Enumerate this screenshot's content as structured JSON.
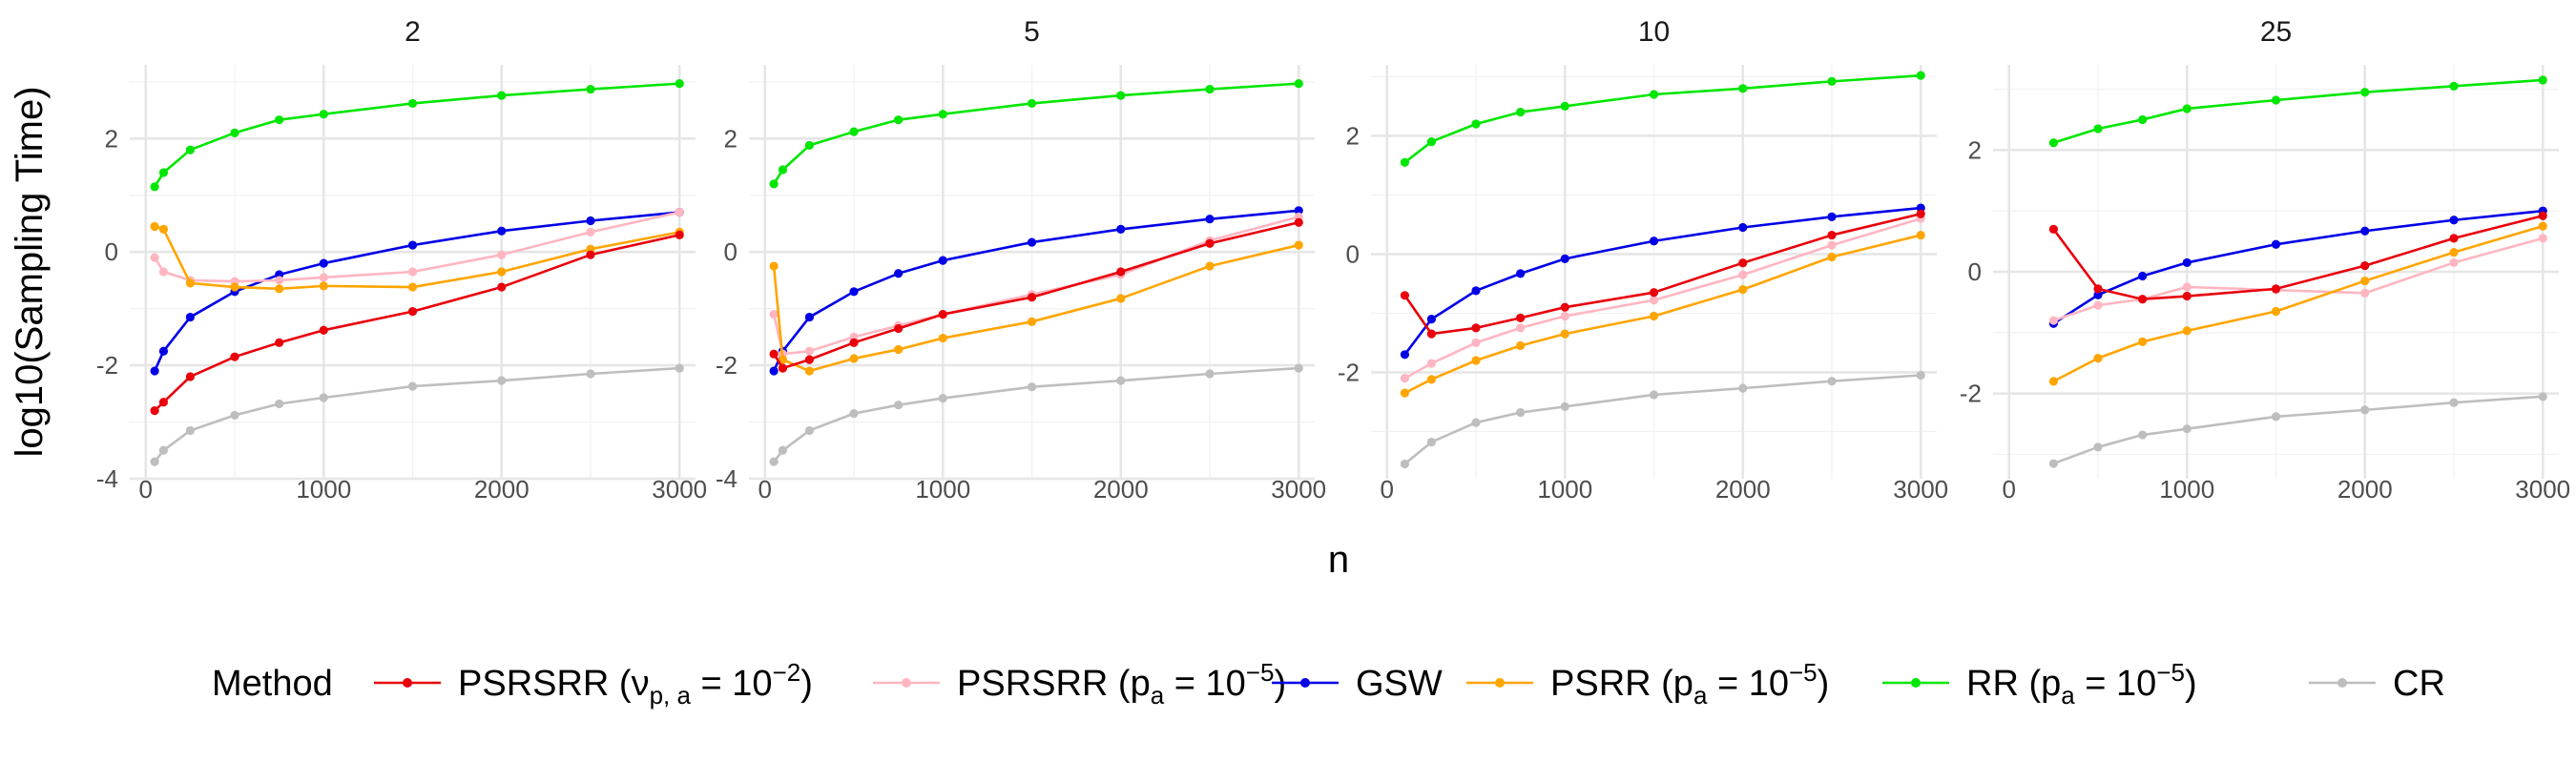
{
  "chart_data": {
    "type": "line",
    "facets": [
      "2",
      "5",
      "10",
      "25"
    ],
    "xlabel": "n",
    "ylabel": "log10(Sampling Time)",
    "xlim": [
      0,
      3000
    ],
    "x_ticks": [
      0,
      1000,
      2000,
      3000
    ],
    "grid": true,
    "legend": {
      "title": "Method",
      "position": "bottom",
      "entries": [
        {
          "key": "psrsrr_nu",
          "base": "PSRSRR",
          "sub": "p, a",
          "sup": "−2",
          "color": "#e8000b"
        },
        {
          "key": "psrsrr_pa",
          "base": "PSRSRR",
          "sub": "a",
          "sup": "−5",
          "color": "#ffb6c1"
        },
        {
          "key": "gsw",
          "base": "GSW",
          "sub": "",
          "sup": "",
          "color": "#0000e6"
        },
        {
          "key": "psrr",
          "base": "PSRR",
          "sub": "a",
          "sup": "−5",
          "color": "#ffa500"
        },
        {
          "key": "rr",
          "base": "RR",
          "sub": "a",
          "sup": "−5",
          "color": "#00e600"
        },
        {
          "key": "cr",
          "base": "CR",
          "sub": "",
          "sup": "",
          "color": "#bebebe"
        }
      ],
      "symbol_nu": "ν",
      "symbol_p": "p",
      "eq": " = 10"
    },
    "panels": [
      {
        "facet": "2",
        "ylim": [
          -4,
          3.3
        ],
        "y_ticks": [
          -4,
          -2,
          0,
          2
        ],
        "series": [
          {
            "key": "rr",
            "x": [
              50,
              100,
              250,
              500,
              750,
              1000,
              1500,
              2000,
              2500,
              3000
            ],
            "y": [
              1.15,
              1.4,
              1.8,
              2.1,
              2.33,
              2.43,
              2.62,
              2.76,
              2.87,
              2.97
            ]
          },
          {
            "key": "gsw",
            "x": [
              50,
              100,
              250,
              500,
              750,
              1000,
              1500,
              2000,
              2500,
              3000
            ],
            "y": [
              -2.1,
              -1.75,
              -1.15,
              -0.7,
              -0.4,
              -0.2,
              0.12,
              0.37,
              0.55,
              0.7
            ]
          },
          {
            "key": "psrsrr_pa",
            "x": [
              50,
              100,
              250,
              500,
              750,
              1000,
              1500,
              2000,
              2500,
              3000
            ],
            "y": [
              -0.1,
              -0.35,
              -0.5,
              -0.52,
              -0.5,
              -0.45,
              -0.35,
              -0.05,
              0.35,
              0.7
            ]
          },
          {
            "key": "psrr",
            "x": [
              50,
              100,
              250,
              500,
              750,
              1000,
              1500,
              2000,
              2500,
              3000
            ],
            "y": [
              0.45,
              0.4,
              -0.55,
              -0.62,
              -0.65,
              -0.6,
              -0.62,
              -0.35,
              0.05,
              0.35
            ]
          },
          {
            "key": "psrsrr_nu",
            "x": [
              50,
              100,
              250,
              500,
              750,
              1000,
              1500,
              2000,
              2500,
              3000
            ],
            "y": [
              -2.8,
              -2.65,
              -2.2,
              -1.85,
              -1.6,
              -1.38,
              -1.05,
              -0.62,
              -0.05,
              0.3
            ]
          },
          {
            "key": "cr",
            "x": [
              50,
              100,
              250,
              500,
              750,
              1000,
              1500,
              2000,
              2500,
              3000
            ],
            "y": [
              -3.7,
              -3.5,
              -3.15,
              -2.88,
              -2.68,
              -2.57,
              -2.37,
              -2.27,
              -2.15,
              -2.05
            ]
          }
        ]
      },
      {
        "facet": "5",
        "ylim": [
          -4,
          3.3
        ],
        "y_ticks": [
          -4,
          -2,
          0,
          2
        ],
        "series": [
          {
            "key": "rr",
            "x": [
              50,
              100,
              250,
              500,
              750,
              1000,
              1500,
              2000,
              2500,
              3000
            ],
            "y": [
              1.2,
              1.45,
              1.88,
              2.12,
              2.33,
              2.43,
              2.62,
              2.76,
              2.87,
              2.97
            ]
          },
          {
            "key": "gsw",
            "x": [
              50,
              100,
              250,
              500,
              750,
              1000,
              1500,
              2000,
              2500,
              3000
            ],
            "y": [
              -2.1,
              -1.75,
              -1.15,
              -0.7,
              -0.38,
              -0.15,
              0.17,
              0.4,
              0.58,
              0.73
            ]
          },
          {
            "key": "psrsrr_pa",
            "x": [
              50,
              100,
              250,
              500,
              750,
              1000,
              1500,
              2000,
              2500,
              3000
            ],
            "y": [
              -1.1,
              -1.8,
              -1.75,
              -1.5,
              -1.3,
              -1.1,
              -0.75,
              -0.4,
              0.2,
              0.62
            ]
          },
          {
            "key": "psrr",
            "x": [
              50,
              100,
              250,
              500,
              750,
              1000,
              1500,
              2000,
              2500,
              3000
            ],
            "y": [
              -0.25,
              -1.9,
              -2.1,
              -1.88,
              -1.72,
              -1.52,
              -1.23,
              -0.82,
              -0.25,
              0.12
            ]
          },
          {
            "key": "psrsrr_nu",
            "x": [
              50,
              100,
              250,
              500,
              750,
              1000,
              1500,
              2000,
              2500,
              3000
            ],
            "y": [
              -1.8,
              -2.05,
              -1.9,
              -1.6,
              -1.35,
              -1.1,
              -0.8,
              -0.35,
              0.15,
              0.52
            ]
          },
          {
            "key": "cr",
            "x": [
              50,
              100,
              250,
              500,
              750,
              1000,
              1500,
              2000,
              2500,
              3000
            ],
            "y": [
              -3.7,
              -3.5,
              -3.15,
              -2.85,
              -2.7,
              -2.58,
              -2.38,
              -2.27,
              -2.15,
              -2.05
            ]
          }
        ]
      },
      {
        "facet": "10",
        "ylim": [
          -3.8,
          3.2
        ],
        "y_ticks": [
          -2,
          0,
          2
        ],
        "series": [
          {
            "key": "rr",
            "x": [
              100,
              250,
              500,
              750,
              1000,
              1500,
              2000,
              2500,
              3000
            ],
            "y": [
              1.55,
              1.9,
              2.2,
              2.4,
              2.5,
              2.7,
              2.8,
              2.92,
              3.02
            ]
          },
          {
            "key": "gsw",
            "x": [
              100,
              250,
              500,
              750,
              1000,
              1500,
              2000,
              2500,
              3000
            ],
            "y": [
              -1.7,
              -1.1,
              -0.62,
              -0.33,
              -0.08,
              0.22,
              0.45,
              0.63,
              0.78
            ]
          },
          {
            "key": "psrsrr_pa",
            "x": [
              100,
              250,
              500,
              750,
              1000,
              1500,
              2000,
              2500,
              3000
            ],
            "y": [
              -2.1,
              -1.85,
              -1.5,
              -1.25,
              -1.05,
              -0.78,
              -0.35,
              0.15,
              0.6
            ]
          },
          {
            "key": "psrr",
            "x": [
              100,
              250,
              500,
              750,
              1000,
              1500,
              2000,
              2500,
              3000
            ],
            "y": [
              -2.35,
              -2.12,
              -1.8,
              -1.55,
              -1.35,
              -1.05,
              -0.6,
              -0.05,
              0.32
            ]
          },
          {
            "key": "psrsrr_nu",
            "x": [
              100,
              250,
              500,
              750,
              1000,
              1500,
              2000,
              2500,
              3000
            ],
            "y": [
              -0.7,
              -1.35,
              -1.25,
              -1.08,
              -0.9,
              -0.65,
              -0.15,
              0.32,
              0.68
            ]
          },
          {
            "key": "cr",
            "x": [
              100,
              250,
              500,
              750,
              1000,
              1500,
              2000,
              2500,
              3000
            ],
            "y": [
              -3.55,
              -3.18,
              -2.85,
              -2.68,
              -2.58,
              -2.38,
              -2.27,
              -2.15,
              -2.05
            ]
          }
        ]
      },
      {
        "facet": "25",
        "ylim": [
          -3.4,
          3.4
        ],
        "y_ticks": [
          -2,
          0,
          2
        ],
        "series": [
          {
            "key": "rr",
            "x": [
              250,
              500,
              750,
              1000,
              1500,
              2000,
              2500,
              3000
            ],
            "y": [
              2.12,
              2.35,
              2.5,
              2.68,
              2.82,
              2.95,
              3.05,
              3.15
            ]
          },
          {
            "key": "gsw",
            "x": [
              250,
              500,
              750,
              1000,
              1500,
              2000,
              2500,
              3000
            ],
            "y": [
              -0.85,
              -0.38,
              -0.07,
              0.15,
              0.45,
              0.67,
              0.85,
              1.0
            ]
          },
          {
            "key": "psrsrr_pa",
            "x": [
              250,
              500,
              750,
              1000,
              1500,
              2000,
              2500,
              3000
            ],
            "y": [
              -0.8,
              -0.55,
              -0.45,
              -0.25,
              -0.3,
              -0.35,
              0.15,
              0.55
            ]
          },
          {
            "key": "psrr",
            "x": [
              250,
              500,
              750,
              1000,
              1500,
              2000,
              2500,
              3000
            ],
            "y": [
              -1.8,
              -1.42,
              -1.15,
              -0.97,
              -0.65,
              -0.15,
              0.32,
              0.75
            ]
          },
          {
            "key": "psrsrr_nu",
            "x": [
              250,
              500,
              750,
              1000,
              1500,
              2000,
              2500,
              3000
            ],
            "y": [
              0.7,
              -0.28,
              -0.45,
              -0.4,
              -0.28,
              0.1,
              0.55,
              0.92
            ]
          },
          {
            "key": "cr",
            "x": [
              250,
              500,
              750,
              1000,
              1500,
              2000,
              2500,
              3000
            ],
            "y": [
              -3.15,
              -2.88,
              -2.68,
              -2.58,
              -2.38,
              -2.27,
              -2.15,
              -2.05
            ]
          }
        ]
      }
    ]
  }
}
